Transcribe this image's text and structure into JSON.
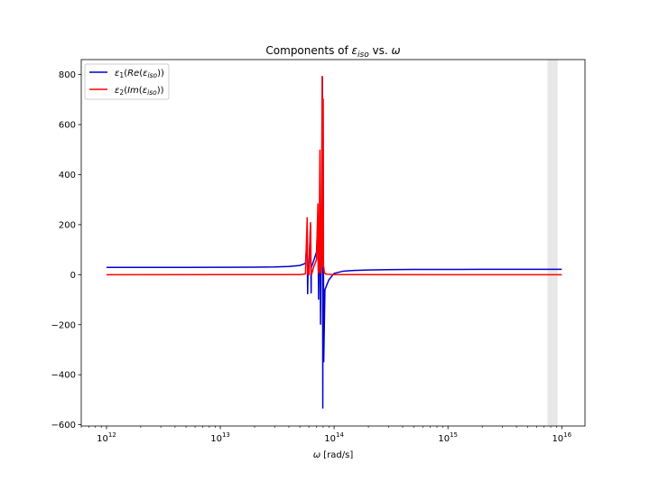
{
  "chart_data": {
    "type": "line",
    "title": {
      "prefix": "Components of ",
      "sym": "ε",
      "sub": "iso",
      "mid": " vs. ",
      "omega": "ω"
    },
    "xlabel": {
      "sym": "ω",
      "rest": " [rad/s]"
    },
    "ylabel": "",
    "x_scale": "log",
    "xlim": [
      600000000000.0,
      1.6e+16
    ],
    "ylim": [
      -605,
      860
    ],
    "x_ticks": [
      {
        "value": 1000000000000.0,
        "base": "10",
        "exp": "12"
      },
      {
        "value": 10000000000000.0,
        "base": "10",
        "exp": "13"
      },
      {
        "value": 100000000000000.0,
        "base": "10",
        "exp": "14"
      },
      {
        "value": 1000000000000000.0,
        "base": "10",
        "exp": "15"
      },
      {
        "value": 1e+16,
        "base": "10",
        "exp": "16"
      }
    ],
    "y_ticks": [
      -600,
      -400,
      -200,
      0,
      200,
      400,
      600,
      800
    ],
    "y_tick_labels": [
      "−600",
      "−400",
      "−200",
      "0",
      "200",
      "400",
      "600",
      "800"
    ],
    "grid": false,
    "legend_position": "top-left",
    "shaded_region": {
      "x0": 7500000000000000.0,
      "x1": 9200000000000000.0,
      "color": "#e8e8e8"
    },
    "series": [
      {
        "name": "ε1(Re(εiso))",
        "label": {
          "sym": "ε",
          "num": "1",
          "open": "(",
          "fn": "Re",
          "open2": "(",
          "sym2": "ε",
          "sub": "iso",
          "close": "))"
        },
        "color": "#0000cc",
        "x": [
          1000000000000.0,
          5000000000000.0,
          10000000000000.0,
          20000000000000.0,
          30000000000000.0,
          40000000000000.0,
          50000000000000.0,
          56000000000000.0,
          58000000000000.0,
          58500000000000.0,
          59000000000000.0,
          60000000000000.0,
          62000000000000.0,
          62800000000000.0,
          63000000000000.0,
          63500000000000.0,
          66000000000000.0,
          70000000000000.0,
          72000000000000.0,
          73000000000000.0,
          73500000000000.0,
          75000000000000.0,
          76000000000000.0,
          76500000000000.0,
          78000000000000.0,
          79000000000000.0,
          79500000000000.0,
          80000000000000.0,
          81000000000000.0,
          83000000000000.0,
          90000000000000.0,
          100000000000000.0,
          120000000000000.0,
          150000000000000.0,
          200000000000000.0,
          300000000000000.0,
          500000000000000.0,
          1000000000000000.0,
          2000000000000000.0,
          5000000000000000.0,
          1e+16
        ],
        "y": [
          29,
          29,
          29.5,
          30,
          31,
          33,
          37,
          45,
          155,
          -78,
          20,
          30,
          200,
          -75,
          30,
          33,
          55,
          90,
          220,
          -100,
          20,
          280,
          -200,
          40,
          80,
          790,
          -535,
          700,
          -350,
          -60,
          -20,
          5,
          14,
          17,
          19,
          20,
          21,
          21,
          21.5,
          21.5,
          21.5
        ]
      },
      {
        "name": "ε2(Im(εiso))",
        "label": {
          "sym": "ε",
          "num": "2",
          "open": "(",
          "fn": "Im",
          "open2": "(",
          "sym2": "ε",
          "sub": "iso",
          "close": "))"
        },
        "color": "#ff0000",
        "x": [
          1000000000000.0,
          50000000000000.0,
          56000000000000.0,
          58000000000000.0,
          58500000000000.0,
          59000000000000.0,
          60000000000000.0,
          62000000000000.0,
          62800000000000.0,
          63500000000000.0,
          66000000000000.0,
          70000000000000.0,
          72000000000000.0,
          72500000000000.0,
          73500000000000.0,
          75000000000000.0,
          75500000000000.0,
          76000000000000.0,
          77000000000000.0,
          78500000000000.0,
          79500000000000.0,
          80000000000000.0,
          80500000000000.0,
          82000000000000.0,
          84000000000000.0,
          90000000000000.0,
          100000000000000.0,
          1000000000000000.0,
          1e+16
        ],
        "y": [
          0,
          0.5,
          3,
          230,
          10,
          2,
          1,
          210,
          8,
          2,
          30,
          60,
          285,
          20,
          5,
          500,
          150,
          10,
          5,
          795,
          30,
          705,
          40,
          10,
          3,
          1,
          0.5,
          0,
          0
        ]
      }
    ]
  }
}
